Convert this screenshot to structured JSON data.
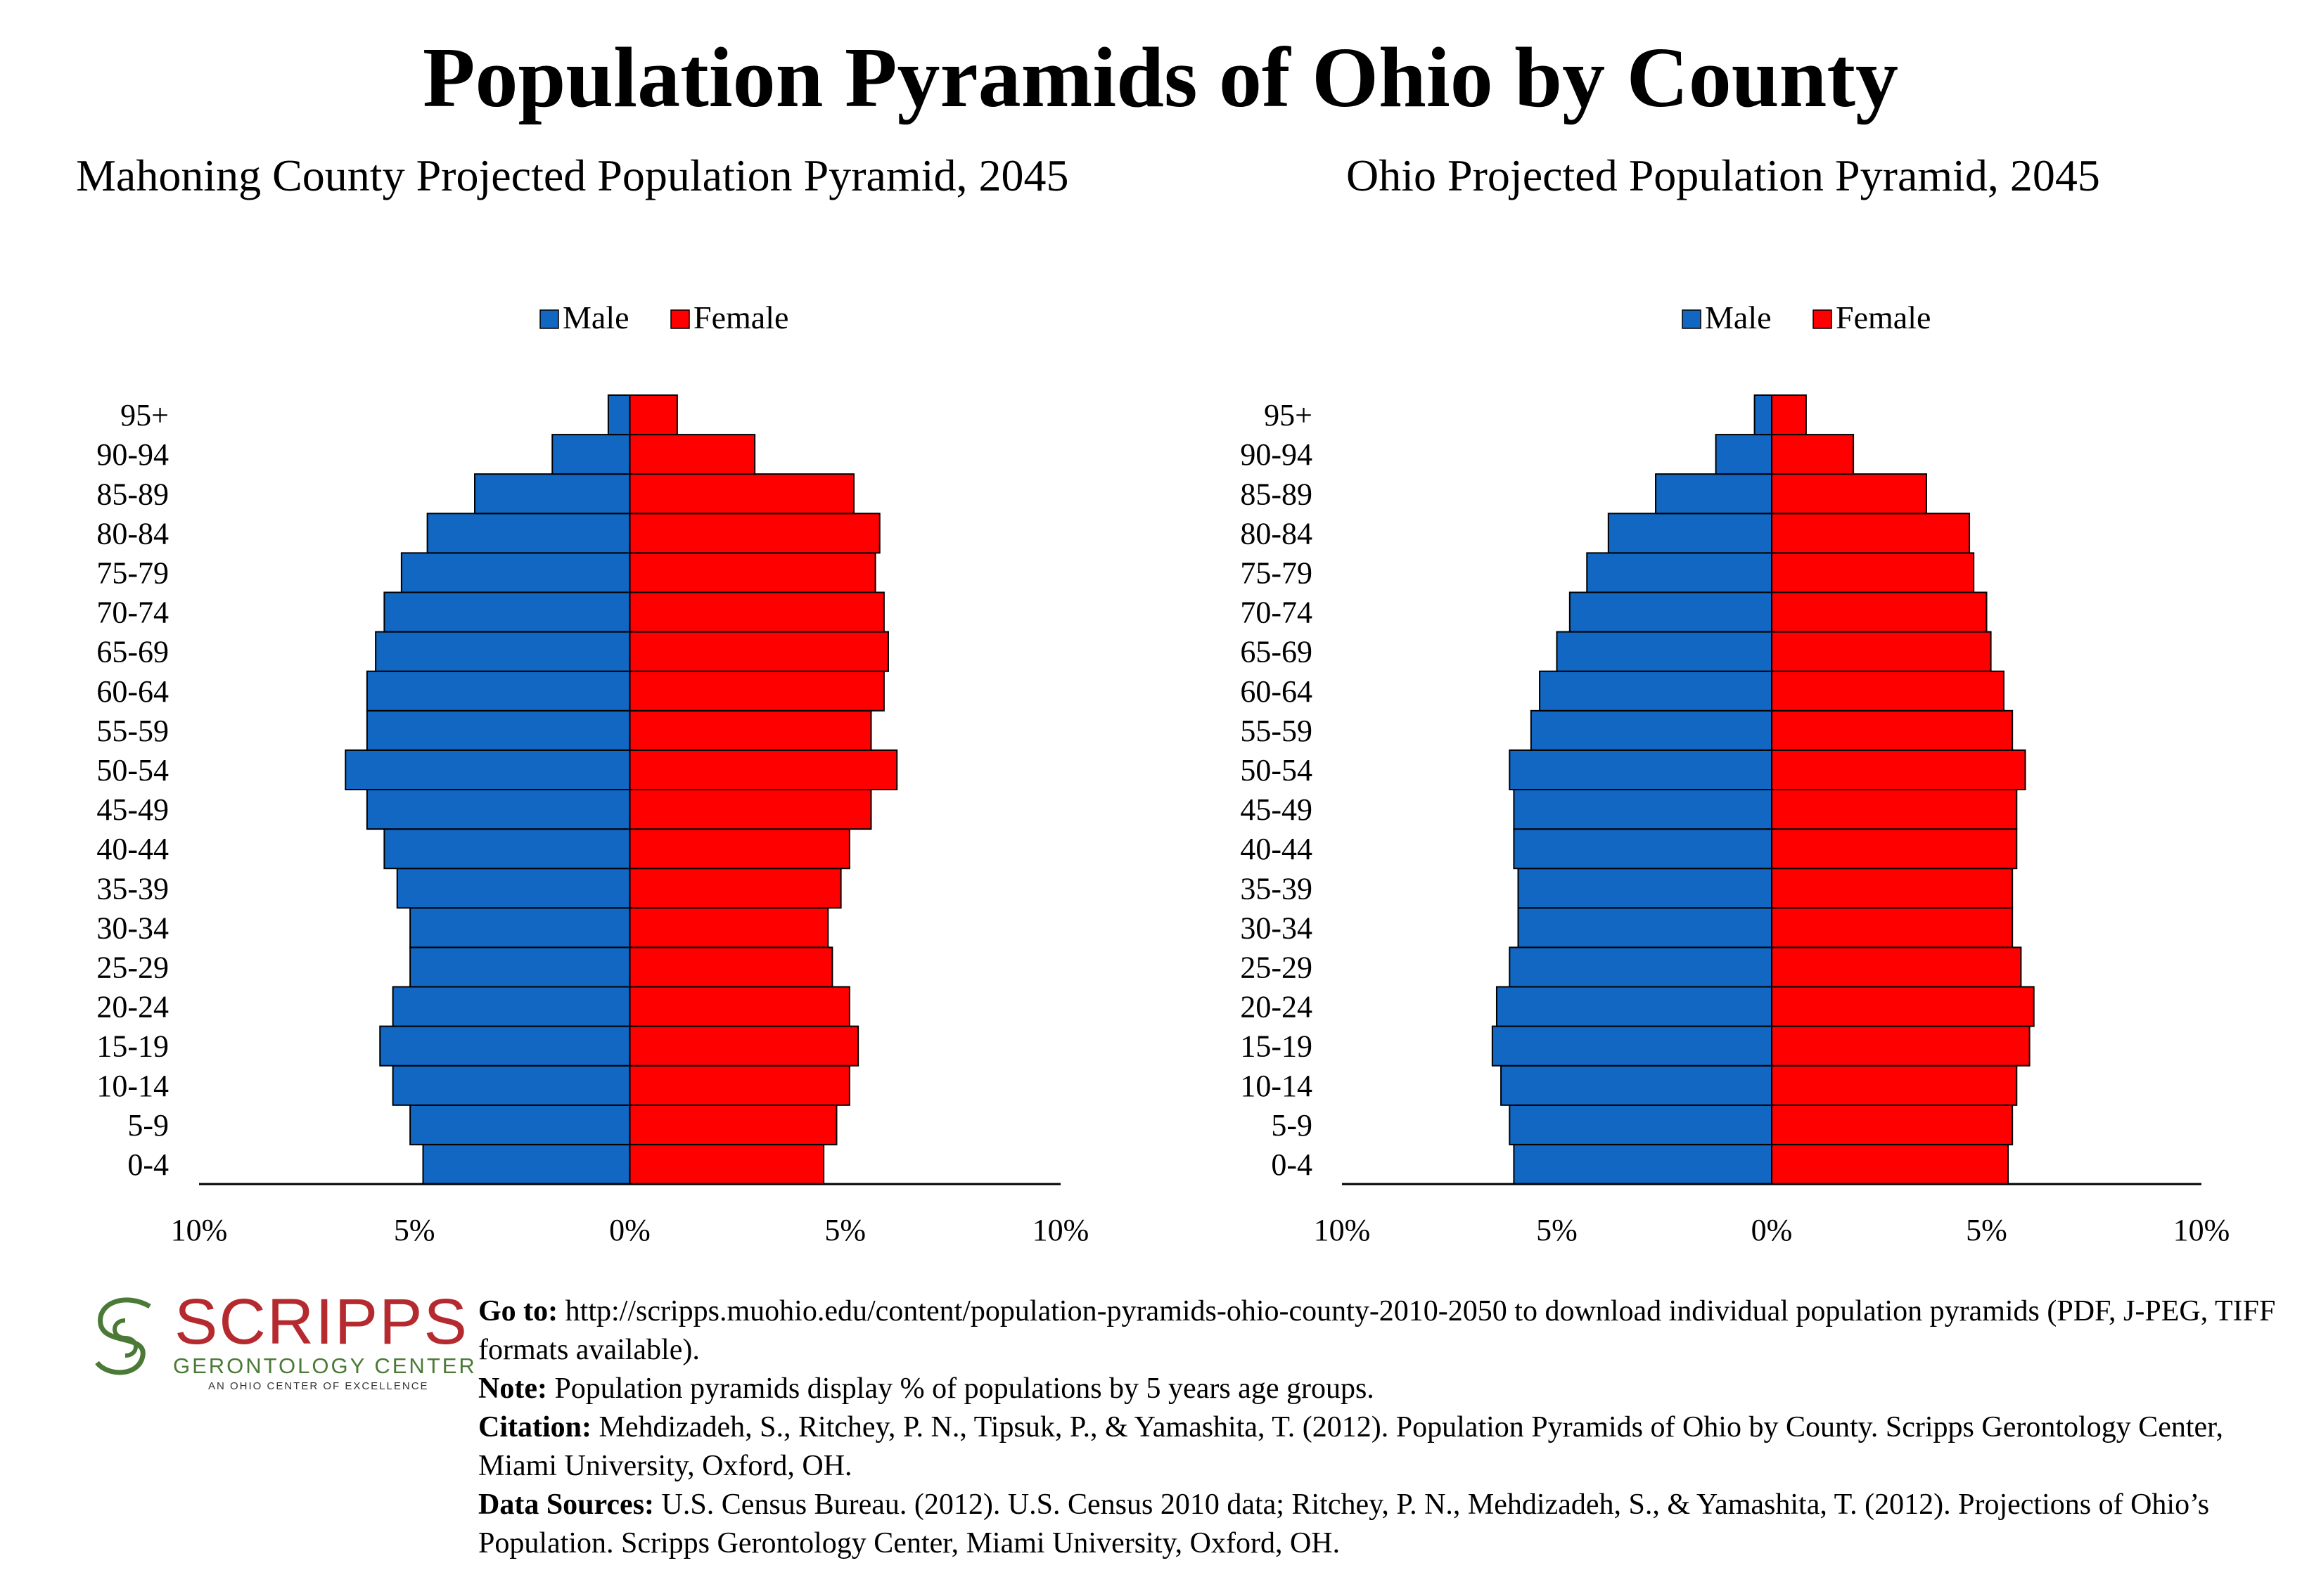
{
  "title": "Population Pyramids of Ohio by County",
  "colors": {
    "male": "#1167c2",
    "female": "#ff0000",
    "axis": "#000000"
  },
  "chart_data": [
    {
      "type": "bar",
      "orientation": "horizontal-pyramid",
      "title": "Mahoning County Projected Population Pyramid, 2045",
      "legend": [
        "Male",
        "Female"
      ],
      "legend_position": "top",
      "categories": [
        "0-4",
        "5-9",
        "10-14",
        "15-19",
        "20-24",
        "25-29",
        "30-34",
        "35-39",
        "40-44",
        "45-49",
        "50-54",
        "55-59",
        "60-64",
        "65-69",
        "70-74",
        "75-79",
        "80-84",
        "85-89",
        "90-94",
        "95+"
      ],
      "series": [
        {
          "name": "Male",
          "values": [
            4.8,
            5.1,
            5.5,
            5.8,
            5.5,
            5.1,
            5.1,
            5.4,
            5.7,
            6.1,
            6.6,
            6.1,
            6.1,
            5.9,
            5.7,
            5.3,
            4.7,
            3.6,
            1.8,
            0.5
          ]
        },
        {
          "name": "Female",
          "values": [
            4.5,
            4.8,
            5.1,
            5.3,
            5.1,
            4.7,
            4.6,
            4.9,
            5.1,
            5.6,
            6.2,
            5.6,
            5.9,
            6.0,
            5.9,
            5.7,
            5.8,
            5.2,
            2.9,
            1.1
          ]
        }
      ],
      "xlim": [
        -10,
        10
      ],
      "tick_labels": [
        "10%",
        "5%",
        "0%",
        "5%",
        "10%"
      ],
      "grid": false
    },
    {
      "type": "bar",
      "orientation": "horizontal-pyramid",
      "title": "Ohio Projected Population Pyramid, 2045",
      "legend": [
        "Male",
        "Female"
      ],
      "legend_position": "top",
      "categories": [
        "0-4",
        "5-9",
        "10-14",
        "15-19",
        "20-24",
        "25-29",
        "30-34",
        "35-39",
        "40-44",
        "45-49",
        "50-54",
        "55-59",
        "60-64",
        "65-69",
        "70-74",
        "75-79",
        "80-84",
        "85-89",
        "90-94",
        "95+"
      ],
      "series": [
        {
          "name": "Male",
          "values": [
            6.0,
            6.1,
            6.3,
            6.5,
            6.4,
            6.1,
            5.9,
            5.9,
            6.0,
            6.0,
            6.1,
            5.6,
            5.4,
            5.0,
            4.7,
            4.3,
            3.8,
            2.7,
            1.3,
            0.4
          ]
        },
        {
          "name": "Female",
          "values": [
            5.5,
            5.6,
            5.7,
            6.0,
            6.1,
            5.8,
            5.6,
            5.6,
            5.7,
            5.7,
            5.9,
            5.6,
            5.4,
            5.1,
            5.0,
            4.7,
            4.6,
            3.6,
            1.9,
            0.8
          ]
        }
      ],
      "xlim": [
        -10,
        10
      ],
      "tick_labels": [
        "10%",
        "5%",
        "0%",
        "5%",
        "10%"
      ],
      "grid": false
    }
  ],
  "logo": {
    "name": "SCRIPPS",
    "subtitle": "GERONTOLOGY CENTER",
    "tagline": "AN OHIO CENTER OF EXCELLENCE"
  },
  "footer": {
    "goto_label": "Go to:",
    "goto_text": "http://scripps.muohio.edu/content/population-pyramids-ohio-county-2010-2050 to download individual population pyramids (PDF, J-PEG, TIFF formats available).",
    "note_label": "Note:",
    "note_text": "Population pyramids display % of populations by 5 years age groups.",
    "citation_label": "Citation:",
    "citation_text": "Mehdizadeh, S., Ritchey, P. N., Tipsuk, P., & Yamashita, T. (2012). Population Pyramids of Ohio by County. Scripps Gerontology Center, Miami University, Oxford, OH.",
    "sources_label": "Data Sources:",
    "sources_text": "U.S. Census Bureau. (2012). U.S. Census 2010 data; Ritchey, P. N., Mehdizadeh, S., & Yamashita, T. (2012). Projections of Ohio’s Population. Scripps Gerontology Center, Miami University, Oxford, OH."
  }
}
